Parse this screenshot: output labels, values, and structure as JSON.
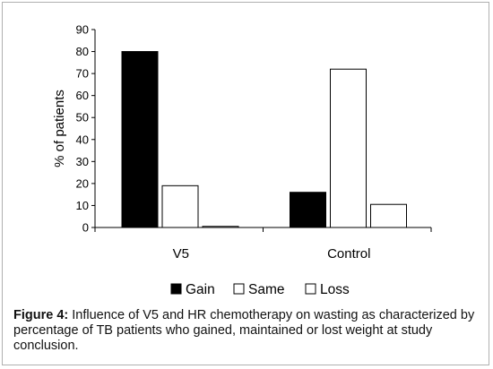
{
  "chart_data": {
    "type": "bar",
    "categories": [
      "V5",
      "Control"
    ],
    "series": [
      {
        "name": "Gain",
        "values": [
          80,
          16
        ],
        "fill": "#000000"
      },
      {
        "name": "Same",
        "values": [
          19,
          72
        ],
        "fill": "#ffffff"
      },
      {
        "name": "Loss",
        "values": [
          0.5,
          10.5
        ],
        "fill": "#ffffff"
      }
    ],
    "xlabel": "",
    "ylabel": "% of patients",
    "ylim": [
      0,
      90
    ],
    "yticks": [
      0,
      10,
      20,
      30,
      40,
      50,
      60,
      70,
      80,
      90
    ],
    "grid": false,
    "legend_position": "bottom"
  },
  "caption": {
    "lead": "Figure 4:",
    "text": " Influence of V5 and HR chemotherapy on wasting as characterized by percentage of TB patients who gained, maintained or lost weight at study conclusion."
  }
}
